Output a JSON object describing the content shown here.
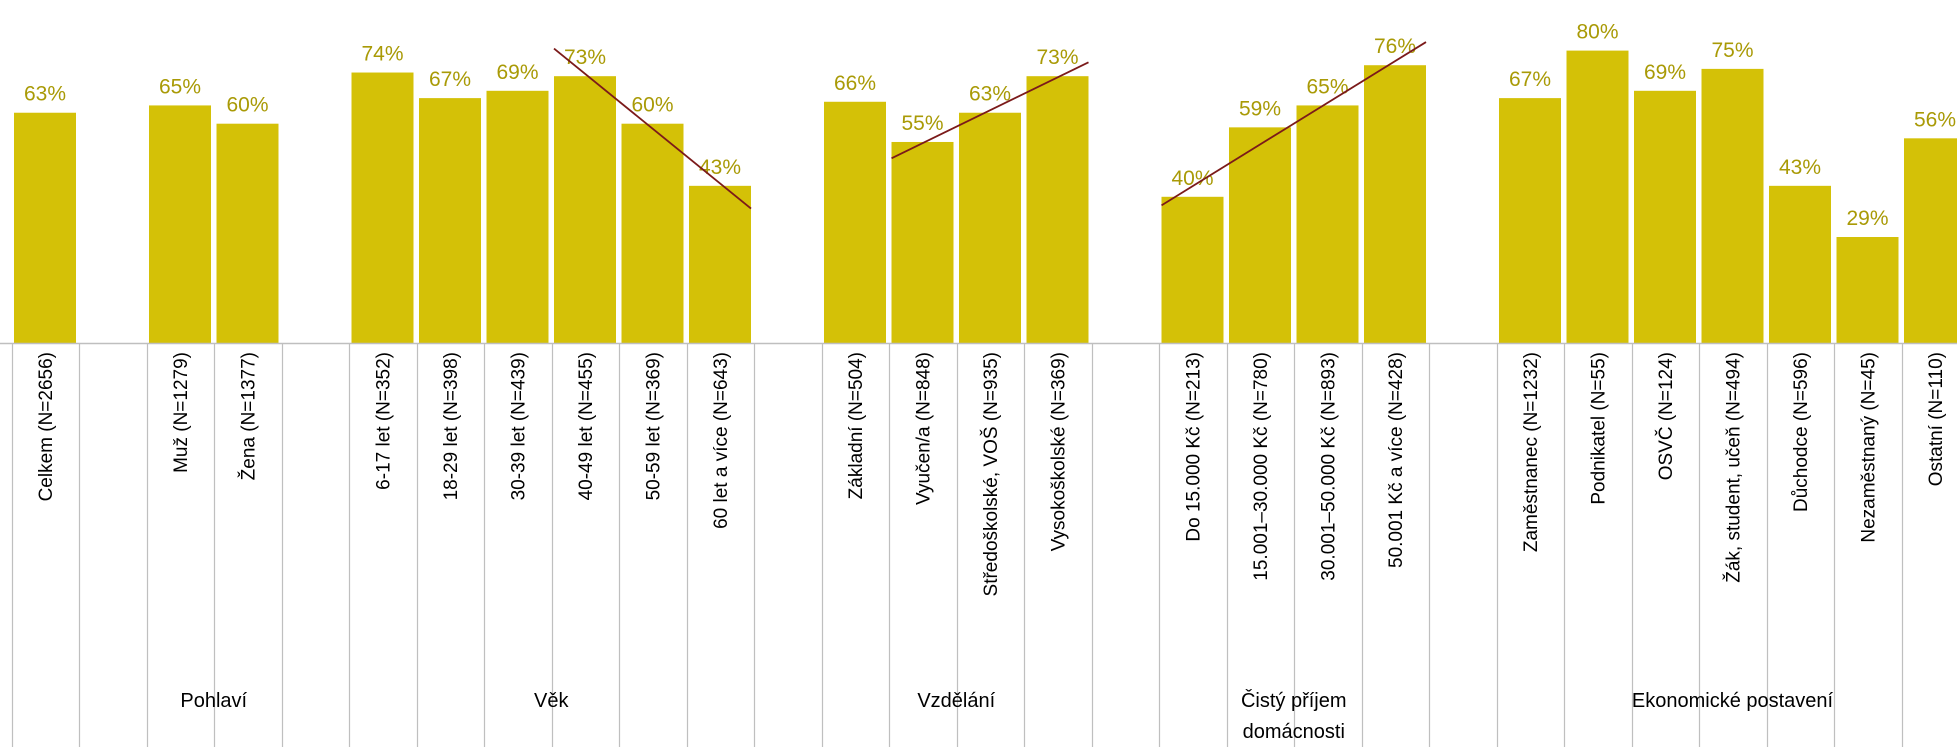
{
  "chart_data": {
    "type": "bar",
    "ylim": [
      0,
      100
    ],
    "unit": "%",
    "colors": {
      "bar": "#D4C107",
      "label": "#A99A06",
      "trend": "#7B1A1A",
      "axis": "#BFBFBF"
    },
    "categories": [
      "Celkem (N=2656)",
      "Muž (N=1279)",
      "Žena (N=1377)",
      "6-17 let (N=352)",
      "18-29 let (N=398)",
      "30-39 let (N=439)",
      "40-49 let (N=455)",
      "50-59 let (N=369)",
      "60 let a více (N=643)",
      "Základní (N=504)",
      "Vyučen/a (N=848)",
      "Středoškolské, VOŠ (N=935)",
      "Vysokoškolské (N=369)",
      "Do 15.000 Kč (N=213)",
      "15.001–30.000 Kč (N=780)",
      "30.001–50.000 Kč (N=893)",
      "50.001 Kč a více (N=428)",
      "Zaměstnanec (N=1232)",
      "Podnikatel (N=55)",
      "OSVČ (N=124)",
      "Žák, student, učeň (N=494)",
      "Důchodce (N=596)",
      "Nezaměstnaný (N=45)",
      "Ostatní (N=110)"
    ],
    "values": [
      63,
      65,
      60,
      74,
      67,
      69,
      73,
      60,
      43,
      66,
      55,
      63,
      73,
      40,
      59,
      65,
      76,
      67,
      80,
      69,
      75,
      43,
      29,
      56
    ],
    "value_labels": [
      "63%",
      "65%",
      "60%",
      "74%",
      "67%",
      "69%",
      "73%",
      "60%",
      "43%",
      "66%",
      "55%",
      "63%",
      "73%",
      "40%",
      "59%",
      "65%",
      "76%",
      "67%",
      "80%",
      "69%",
      "75%",
      "43%",
      "29%",
      "56%"
    ],
    "groups": [
      {
        "label": "",
        "start": 0,
        "end": 0
      },
      {
        "label": "Pohlaví",
        "start": 1,
        "end": 2
      },
      {
        "label": "Věk",
        "start": 3,
        "end": 8
      },
      {
        "label": "Vzdělání",
        "start": 9,
        "end": 12
      },
      {
        "label": "Čistý příjem domácnosti",
        "start": 13,
        "end": 16
      },
      {
        "label": "Ekonomické postavení",
        "start": 17,
        "end": 23
      }
    ],
    "trendlines": [
      {
        "from": 6,
        "to": 8
      },
      {
        "from": 10,
        "to": 12
      },
      {
        "from": 13,
        "to": 16
      }
    ]
  }
}
